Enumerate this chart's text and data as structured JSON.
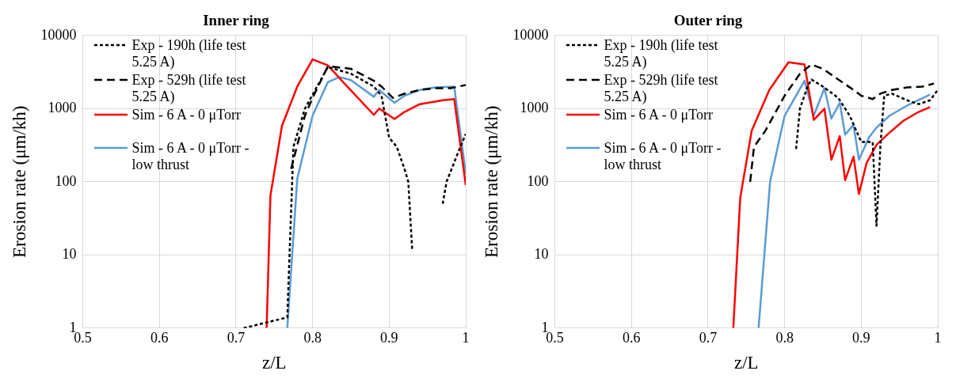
{
  "chart_data": [
    {
      "type": "line",
      "title": "Inner ring",
      "xlabel": "z/L",
      "ylabel": "Erosion rate (μm/kh)",
      "log": "y",
      "xlim": [
        0.5,
        1
      ],
      "xticks": [
        0.5,
        0.6,
        0.7,
        0.8,
        0.9,
        1
      ],
      "ylim": [
        1,
        10000
      ],
      "yticks": [
        1,
        10,
        100,
        1000,
        10000
      ],
      "grid": true,
      "legend": "top left",
      "marker": "none",
      "series": [
        {
          "name": "Exp - 190h (life test 5.25 A)",
          "color": "#000000",
          "line_style": "dotted",
          "x": [
            0.71,
            0.767,
            0.775,
            0.79,
            0.82,
            0.85,
            0.88,
            0.89,
            0.9,
            0.91,
            0.92,
            0.925,
            0.93,
            0.95,
            0.97,
            0.975,
            0.99,
            1.0
          ],
          "values": [
            1,
            1.4,
            300,
            1000,
            3700,
            3000,
            2000,
            1500,
            400,
            300,
            150,
            100,
            12,
            null,
            50,
            100,
            250,
            450
          ]
        },
        {
          "name": "Exp - 529h (life test 5.25 A)",
          "color": "#000000",
          "line_style": "dashed",
          "x": [
            0.772,
            0.79,
            0.8,
            0.82,
            0.85,
            0.88,
            0.89,
            0.905,
            0.92,
            0.94,
            0.96,
            0.98,
            1.0
          ],
          "values": [
            150,
            800,
            1400,
            3800,
            3500,
            2400,
            2000,
            1400,
            1600,
            1800,
            1900,
            1900,
            2100
          ]
        },
        {
          "name": "Sim - 6 A - 0 μTorr",
          "color": "#ff0000",
          "line_style": "solid",
          "x": [
            0.74,
            0.745,
            0.76,
            0.78,
            0.8,
            0.82,
            0.84,
            0.88,
            0.887,
            0.907,
            0.92,
            0.94,
            0.97,
            0.985,
            1.0
          ],
          "values": [
            1,
            65,
            580,
            2000,
            4700,
            3900,
            2300,
            820,
            1000,
            720,
            900,
            1150,
            1300,
            1350,
            90
          ]
        },
        {
          "name": "Sim - 6 A - 0 μTorr - low thrust",
          "color": "#5b9bd5",
          "line_style": "solid",
          "x": [
            0.767,
            0.78,
            0.8,
            0.82,
            0.835,
            0.85,
            0.88,
            0.887,
            0.907,
            0.92,
            0.94,
            0.96,
            0.985,
            1.0
          ],
          "values": [
            1,
            110,
            800,
            2300,
            2700,
            2450,
            1450,
            1800,
            1200,
            1500,
            1800,
            1950,
            2000,
            130
          ]
        }
      ]
    },
    {
      "type": "line",
      "title": "Outer ring",
      "xlabel": "z/L",
      "ylabel": "Erosion rate (μm/kh)",
      "log": "y",
      "xlim": [
        0.5,
        1
      ],
      "xticks": [
        0.5,
        0.6,
        0.7,
        0.8,
        0.9,
        1
      ],
      "ylim": [
        1,
        10000
      ],
      "yticks": [
        1,
        10,
        100,
        1000,
        10000
      ],
      "grid": true,
      "legend": "top left",
      "marker": "none",
      "series": [
        {
          "name": "Exp - 190h (life test 5.25 A)",
          "color": "#000000",
          "line_style": "dotted",
          "x": [
            0.815,
            0.82,
            0.83,
            0.835,
            0.85,
            0.87,
            0.885,
            0.9,
            0.915,
            0.92,
            0.925,
            0.93,
            0.94,
            0.96,
            0.975,
            0.99,
            1.0
          ],
          "values": [
            280,
            1000,
            2000,
            2500,
            2000,
            1400,
            800,
            350,
            350,
            25,
            300,
            1500,
            1600,
            1300,
            1150,
            1300,
            1800
          ]
        },
        {
          "name": "Exp - 529h (life test 5.25 A)",
          "color": "#000000",
          "line_style": "dashed",
          "x": [
            0.755,
            0.76,
            0.775,
            0.8,
            0.82,
            0.835,
            0.85,
            0.87,
            0.89,
            0.9,
            0.915,
            0.925,
            0.94,
            0.96,
            0.98,
            0.995
          ],
          "values": [
            100,
            300,
            500,
            1500,
            3000,
            4000,
            3500,
            2500,
            1800,
            1500,
            1350,
            1600,
            1800,
            1950,
            2000,
            2200
          ]
        },
        {
          "name": "Sim - 6 A - 0 μTorr",
          "color": "#ff0000",
          "line_style": "solid",
          "x": [
            0.733,
            0.742,
            0.757,
            0.78,
            0.805,
            0.826,
            0.838,
            0.852,
            0.861,
            0.872,
            0.879,
            0.89,
            0.897,
            0.907,
            0.92,
            0.935,
            0.955,
            0.975,
            0.99
          ],
          "values": [
            1,
            60,
            500,
            1800,
            4300,
            4000,
            700,
            1000,
            200,
            420,
            105,
            220,
            68,
            180,
            320,
            450,
            680,
            900,
            1050
          ]
        },
        {
          "name": "Sim - 6 A - 0 μTorr - low thrust",
          "color": "#5b9bd5",
          "line_style": "solid",
          "x": [
            0.766,
            0.781,
            0.8,
            0.826,
            0.838,
            0.852,
            0.861,
            0.872,
            0.879,
            0.89,
            0.897,
            0.91,
            0.92,
            0.937,
            0.96,
            0.99
          ],
          "values": [
            1,
            100,
            800,
            2400,
            800,
            1900,
            730,
            1200,
            440,
            600,
            200,
            400,
            550,
            800,
            1100,
            1550
          ]
        }
      ]
    }
  ]
}
